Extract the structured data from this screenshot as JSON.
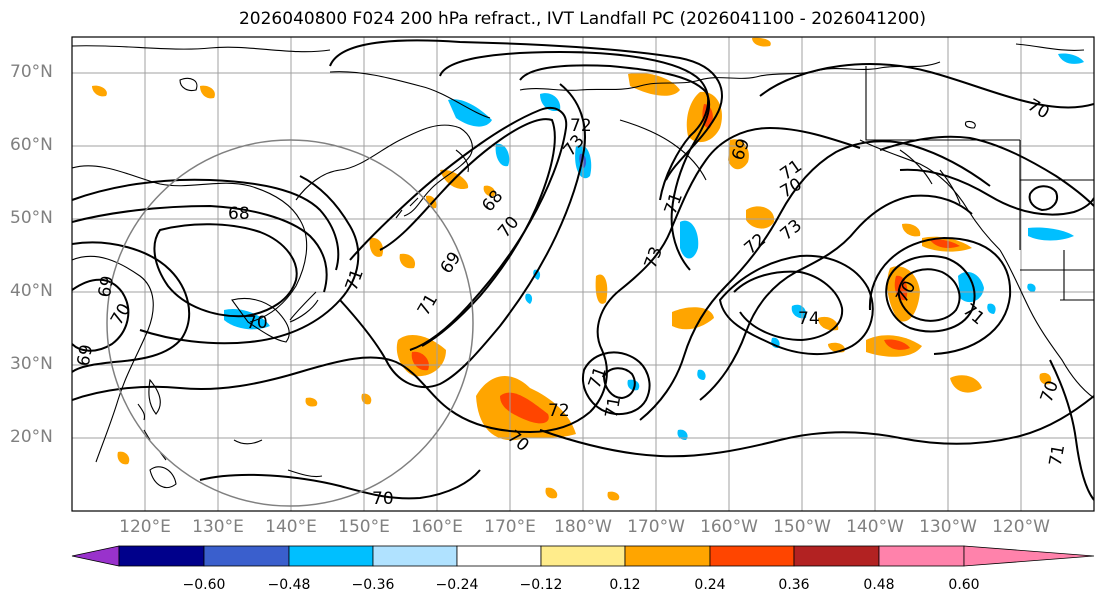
{
  "title": "2026040800 F024 200 hPa refract., IVT Landfall PC (2026041100 - 2026041200)",
  "lat_labels": [
    "70°N",
    "60°N",
    "50°N",
    "40°N",
    "30°N",
    "20°N"
  ],
  "lon_labels": [
    "120°E",
    "130°E",
    "140°E",
    "150°E",
    "160°E",
    "170°E",
    "180°W",
    "170°W",
    "160°W",
    "150°W",
    "140°W",
    "130°W",
    "120°W"
  ],
  "colorbar": {
    "colors": [
      "#9932cc",
      "#00008b",
      "#3a5fcd",
      "#00bfff",
      "#b0e2ff",
      "#ffffff",
      "#ffec8b",
      "#ffa500",
      "#ff4500",
      "#b22222",
      "#ff82ab"
    ],
    "ticks": [
      "−0.60",
      "−0.48",
      "−0.36",
      "−0.24",
      "−0.12",
      "0.12",
      "0.24",
      "0.36",
      "0.48",
      "0.60"
    ]
  },
  "contour_labels": [
    "68",
    "69",
    "70",
    "71",
    "72",
    "73",
    "68",
    "69",
    "70",
    "71",
    "70",
    "69",
    "70",
    "71",
    "73",
    "72",
    "73",
    "71",
    "70",
    "69",
    "70",
    "70",
    "71",
    "71",
    "70",
    "71",
    "72",
    "74",
    "70",
    "71"
  ],
  "colors": {
    "frame": "#000000",
    "grid": "#a0a0a0",
    "contour": "#000000",
    "coast": "#000000",
    "circle": "#808080",
    "axis_label": "#808080"
  }
}
